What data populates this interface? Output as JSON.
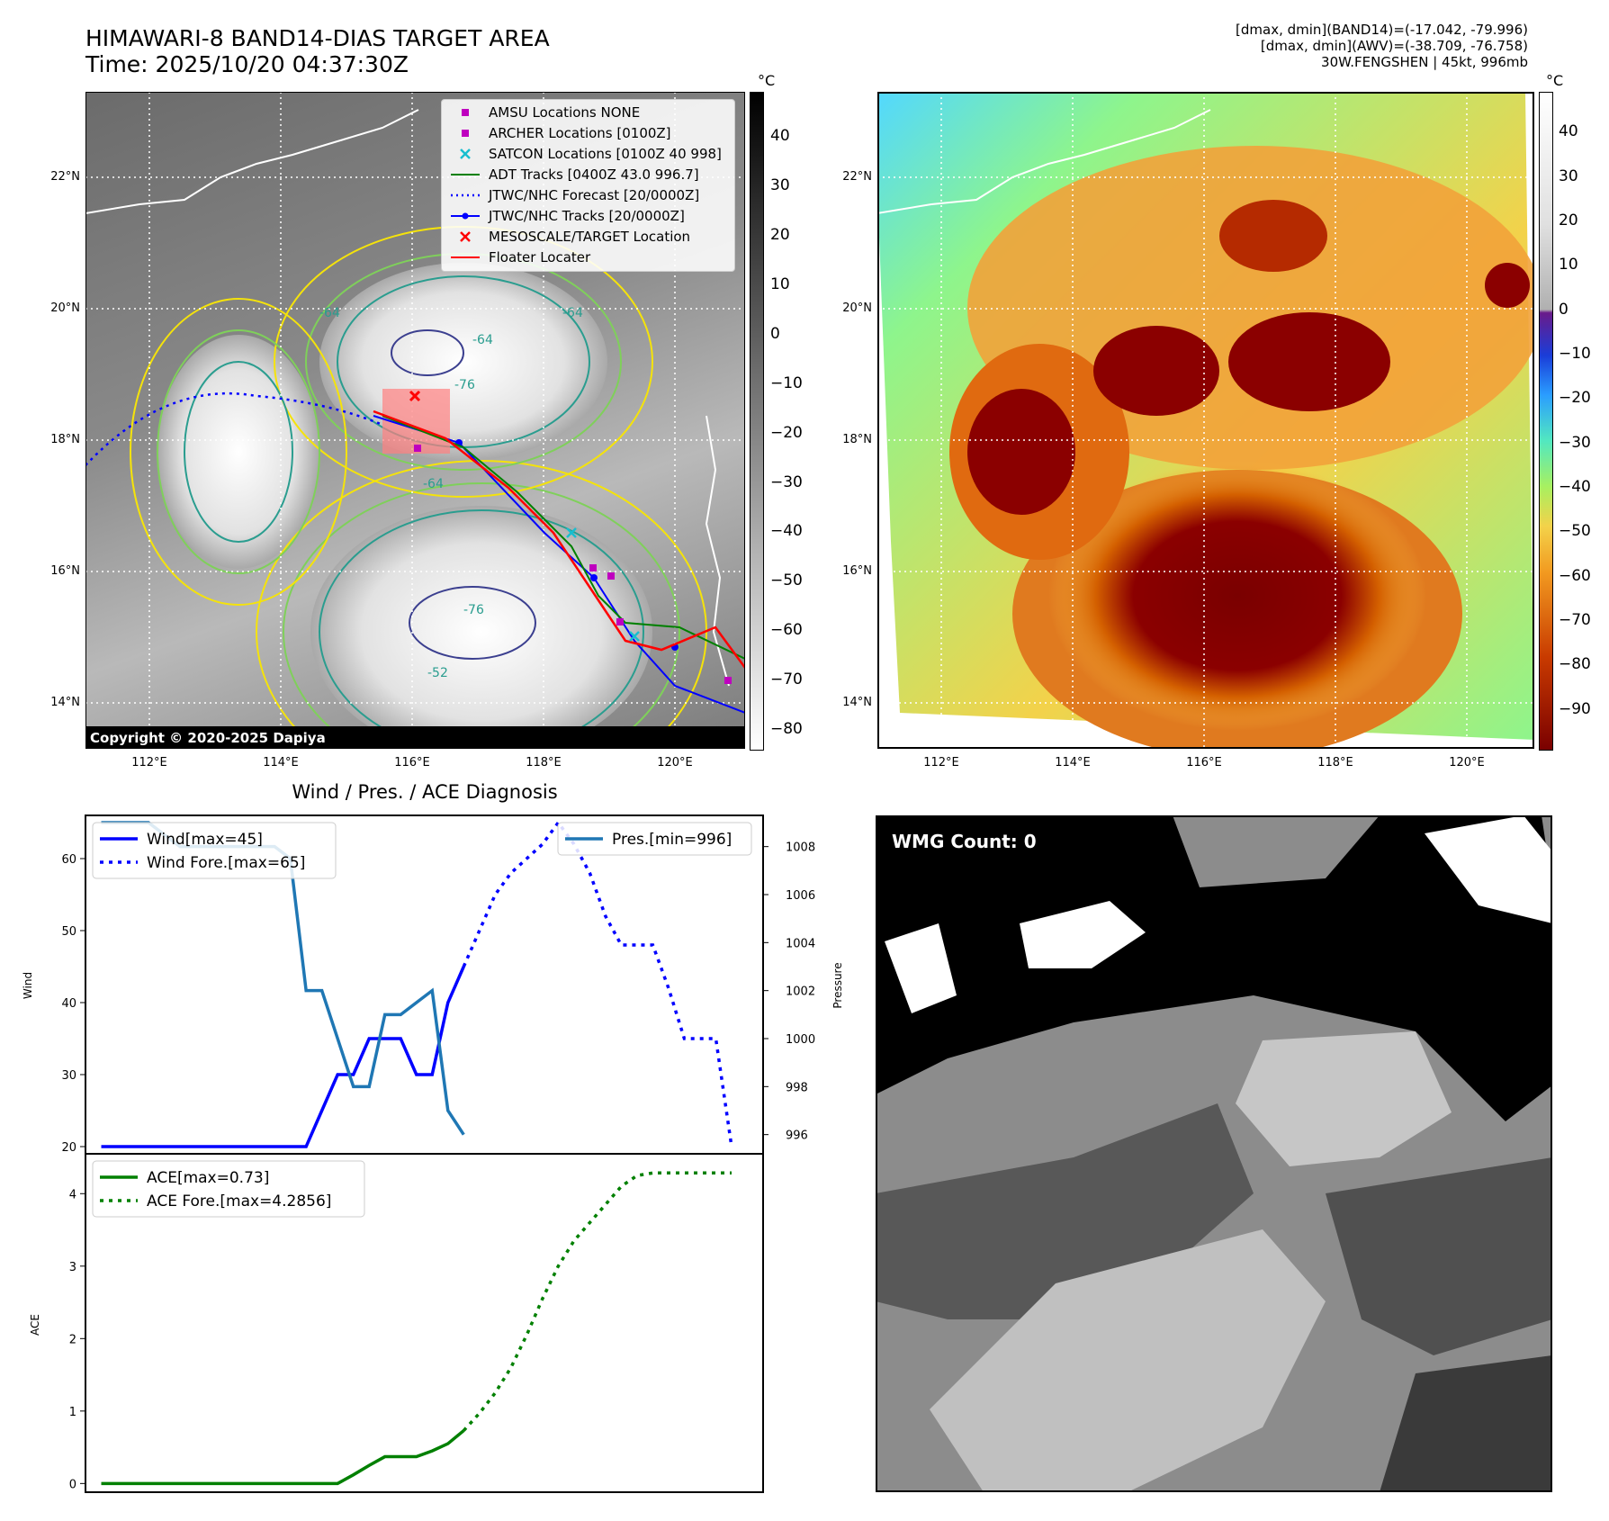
{
  "header": {
    "title_line1": "HIMAWARI-8 BAND14-DIAS TARGET AREA",
    "title_line2": "Time: 2025/10/20 04:37:30Z",
    "info_line1": "[dmax, dmin](BAND14)=(-17.042, -79.996)",
    "info_line2": "[dmax, dmin](AWV)=(-38.709, -76.758)",
    "info_line3": "30W.FENGSHEN | 45kt, 996mb"
  },
  "map": {
    "lon_ticks": [
      "112°E",
      "114°E",
      "116°E",
      "118°E",
      "120°E"
    ],
    "lat_ticks": [
      "22°N",
      "20°N",
      "18°N",
      "16°N",
      "14°N"
    ],
    "copyright": "Copyright © 2020-2025 Dapiya",
    "contour_labels": [
      "-64",
      "-64",
      "-76",
      "-64",
      "-76",
      "-52",
      "-64"
    ],
    "legend": [
      {
        "label": "AMSU Locations NONE",
        "color": "#bf00bf",
        "marker": "square"
      },
      {
        "label": "ARCHER Locations [0100Z]",
        "color": "#bf00bf",
        "marker": "square"
      },
      {
        "label": "SATCON Locations [0100Z 40 998]",
        "color": "#17becf",
        "marker": "x"
      },
      {
        "label": "ADT Tracks [0400Z 43.0 996.7]",
        "color": "#008000",
        "marker": "line"
      },
      {
        "label": "JTWC/NHC Forecast [20/0000Z]",
        "color": "#0000ff",
        "marker": "dotted"
      },
      {
        "label": "JTWC/NHC Tracks [20/0000Z]",
        "color": "#0000ff",
        "marker": "line-dot"
      },
      {
        "label": "MESOSCALE/TARGET Location",
        "color": "#ff0000",
        "marker": "x"
      },
      {
        "label": "Floater Locater",
        "color": "#ff0000",
        "marker": "line"
      }
    ]
  },
  "colorbar_ir": {
    "unit": "°C",
    "ticks": [
      "40",
      "30",
      "20",
      "10",
      "0",
      "−10",
      "−20",
      "−30",
      "−40",
      "−50",
      "−60",
      "−70",
      "−80"
    ]
  },
  "colorbar_awv": {
    "unit": "°C",
    "ticks": [
      "40",
      "30",
      "20",
      "10",
      "0",
      "−10",
      "−20",
      "−30",
      "−40",
      "−50",
      "−60",
      "−70",
      "−80",
      "−90"
    ]
  },
  "wmg": {
    "label": "WMG Count: 0"
  },
  "chart_data": [
    {
      "type": "line",
      "title": "Wind / Pres. / ACE Diagnosis",
      "ylabel": "Wind",
      "y2label": "Pressure",
      "ylim": [
        19,
        66
      ],
      "y2lim": [
        995.2,
        1009.3
      ],
      "yticks": [
        20,
        30,
        40,
        50,
        60
      ],
      "y2ticks": [
        996,
        998,
        1000,
        1002,
        1004,
        1006,
        1008
      ],
      "x": [
        0,
        1,
        2,
        3,
        4,
        5,
        6,
        7,
        8,
        9,
        10,
        11,
        12,
        13,
        14,
        15,
        16,
        17,
        18,
        19,
        20,
        21,
        22,
        23,
        24,
        25,
        26,
        27,
        28,
        29,
        30,
        31,
        32,
        33,
        34,
        35,
        36,
        37,
        38,
        39,
        40
      ],
      "series": [
        {
          "name": "Wind[max=45]",
          "style": "solid",
          "color": "#0000ff",
          "axis": "left",
          "x": [
            0,
            1,
            2,
            3,
            4,
            5,
            6,
            7,
            8,
            9,
            10,
            11,
            12,
            13,
            14,
            15,
            16,
            17,
            18,
            19,
            20,
            21,
            22,
            23
          ],
          "values": [
            20,
            20,
            20,
            20,
            20,
            20,
            20,
            20,
            20,
            20,
            20,
            20,
            20,
            20,
            25,
            30,
            30,
            35,
            35,
            35,
            30,
            30,
            40,
            45
          ]
        },
        {
          "name": "Wind Fore.[max=65]",
          "style": "dotted",
          "color": "#0000ff",
          "axis": "left",
          "x": [
            23,
            24,
            25,
            26,
            27,
            28,
            29,
            30,
            31,
            32,
            33,
            34,
            35,
            36,
            37,
            38,
            39,
            40
          ],
          "values": [
            45,
            50,
            55,
            58,
            60,
            62,
            65,
            62,
            58,
            52,
            48,
            48,
            48,
            42,
            35,
            35,
            35,
            20
          ]
        },
        {
          "name": "Pres.[min=996]",
          "style": "solid",
          "color": "#1f77b4",
          "axis": "right",
          "x": [
            0,
            1,
            2,
            3,
            4,
            5,
            6,
            7,
            8,
            9,
            10,
            11,
            12,
            13,
            14,
            15,
            16,
            17,
            18,
            19,
            20,
            21,
            22,
            23
          ],
          "values": [
            1009,
            1009,
            1009,
            1009,
            1008.5,
            1008,
            1008,
            1008,
            1008,
            1008,
            1008,
            1008,
            1007.5,
            1002,
            1002,
            1000,
            998,
            998,
            1001,
            1001,
            1001.5,
            1002,
            997,
            996
          ]
        }
      ]
    },
    {
      "type": "line",
      "ylabel": "ACE",
      "ylim": [
        -0.12,
        4.55
      ],
      "yticks": [
        0,
        1,
        2,
        3,
        4
      ],
      "series": [
        {
          "name": "ACE[max=0.73]",
          "style": "solid",
          "color": "#008000",
          "x": [
            0,
            1,
            2,
            3,
            4,
            5,
            6,
            7,
            8,
            9,
            10,
            11,
            12,
            13,
            14,
            15,
            16,
            17,
            18,
            19,
            20,
            21,
            22,
            23
          ],
          "values": [
            0,
            0,
            0,
            0,
            0,
            0,
            0,
            0,
            0,
            0,
            0,
            0,
            0,
            0,
            0,
            0,
            0.12,
            0.25,
            0.37,
            0.37,
            0.37,
            0.45,
            0.55,
            0.73
          ]
        },
        {
          "name": "ACE Fore.[max=4.2856]",
          "style": "dotted",
          "color": "#008000",
          "x": [
            23,
            24,
            25,
            26,
            27,
            28,
            29,
            30,
            31,
            32,
            33,
            34,
            35,
            36,
            37,
            38,
            39,
            40
          ],
          "values": [
            0.73,
            0.97,
            1.25,
            1.6,
            2.05,
            2.55,
            3.0,
            3.35,
            3.6,
            3.85,
            4.1,
            4.25,
            4.2856,
            4.2856,
            4.2856,
            4.2856,
            4.2856,
            4.2856
          ]
        }
      ]
    }
  ]
}
